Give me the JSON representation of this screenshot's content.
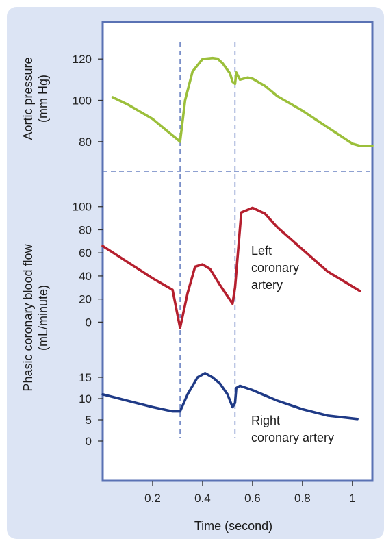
{
  "colors": {
    "background_panel": "#dce4f4",
    "plot_area": "#ffffff",
    "frame": "#5a72b4",
    "dashed": "#6a82c2",
    "aortic": "#9bbf3a",
    "left_coronary": "#b51f2e",
    "right_coronary": "#1f3a86"
  },
  "chart_data": [
    {
      "type": "line",
      "ylabel": [
        "Aortic pressure",
        "(mm Hg)"
      ],
      "yticks": [
        80,
        100,
        120
      ],
      "ylim": [
        69,
        132
      ],
      "xlim": [
        0,
        1.08
      ],
      "series": [
        {
          "key": "aortic",
          "x": [
            0.04,
            0.1,
            0.2,
            0.3,
            0.31,
            0.33,
            0.36,
            0.4,
            0.44,
            0.46,
            0.48,
            0.51,
            0.52,
            0.53,
            0.535,
            0.55,
            0.58,
            0.6,
            0.65,
            0.7,
            0.8,
            0.9,
            0.95,
            1.0,
            1.03,
            1.08
          ],
          "values": [
            101.5,
            98,
            91,
            81,
            80,
            100,
            114,
            120,
            120.5,
            120.2,
            118,
            113,
            109,
            108,
            113.5,
            110,
            111,
            110.5,
            107,
            102,
            95,
            87,
            83,
            79,
            78,
            78
          ]
        }
      ]
    },
    {
      "type": "line",
      "ylabel": [
        "Phasic coronary blood flow",
        "(mL/minute)"
      ],
      "panel": "left",
      "yticks": [
        0,
        20,
        40,
        60,
        80,
        100
      ],
      "ylim": [
        -14,
        120
      ],
      "xlim": [
        0,
        1.08
      ],
      "annotation": [
        "Left",
        "coronary",
        "artery"
      ],
      "series": [
        {
          "key": "left_coronary",
          "x": [
            0.0,
            0.1,
            0.2,
            0.28,
            0.31,
            0.34,
            0.37,
            0.4,
            0.43,
            0.47,
            0.52,
            0.53,
            0.555,
            0.6,
            0.65,
            0.7,
            0.8,
            0.9,
            1.03
          ],
          "values": [
            66,
            52,
            38,
            28,
            -5,
            25,
            48,
            50,
            46,
            32,
            16,
            30,
            95,
            99,
            94,
            82,
            63,
            44,
            27
          ]
        }
      ]
    },
    {
      "type": "line",
      "panel": "right",
      "yticks": [
        0,
        5,
        10,
        15
      ],
      "ylim": [
        -5,
        20
      ],
      "xlim": [
        0,
        1.08
      ],
      "annotation": [
        "Right",
        "coronary artery"
      ],
      "series": [
        {
          "key": "right_coronary",
          "x": [
            0.0,
            0.1,
            0.2,
            0.28,
            0.31,
            0.34,
            0.38,
            0.41,
            0.44,
            0.47,
            0.5,
            0.52,
            0.53,
            0.535,
            0.55,
            0.6,
            0.7,
            0.8,
            0.9,
            1.02
          ],
          "values": [
            11,
            9.5,
            8,
            7,
            7,
            11,
            15,
            16,
            15,
            13.5,
            11,
            8,
            9,
            12.5,
            13,
            12,
            9.5,
            7.5,
            6,
            5.2
          ]
        }
      ]
    }
  ],
  "x_axis": {
    "label": "Time (second)",
    "ticks": [
      0.2,
      0.4,
      0.6,
      0.8,
      1
    ],
    "tick_labels": [
      "0.2",
      "0.4",
      "0.6",
      "0.8",
      "1"
    ],
    "xlim": [
      0,
      1.08
    ]
  },
  "markers": {
    "vertical_dashed_x": [
      0.31,
      0.53
    ]
  }
}
